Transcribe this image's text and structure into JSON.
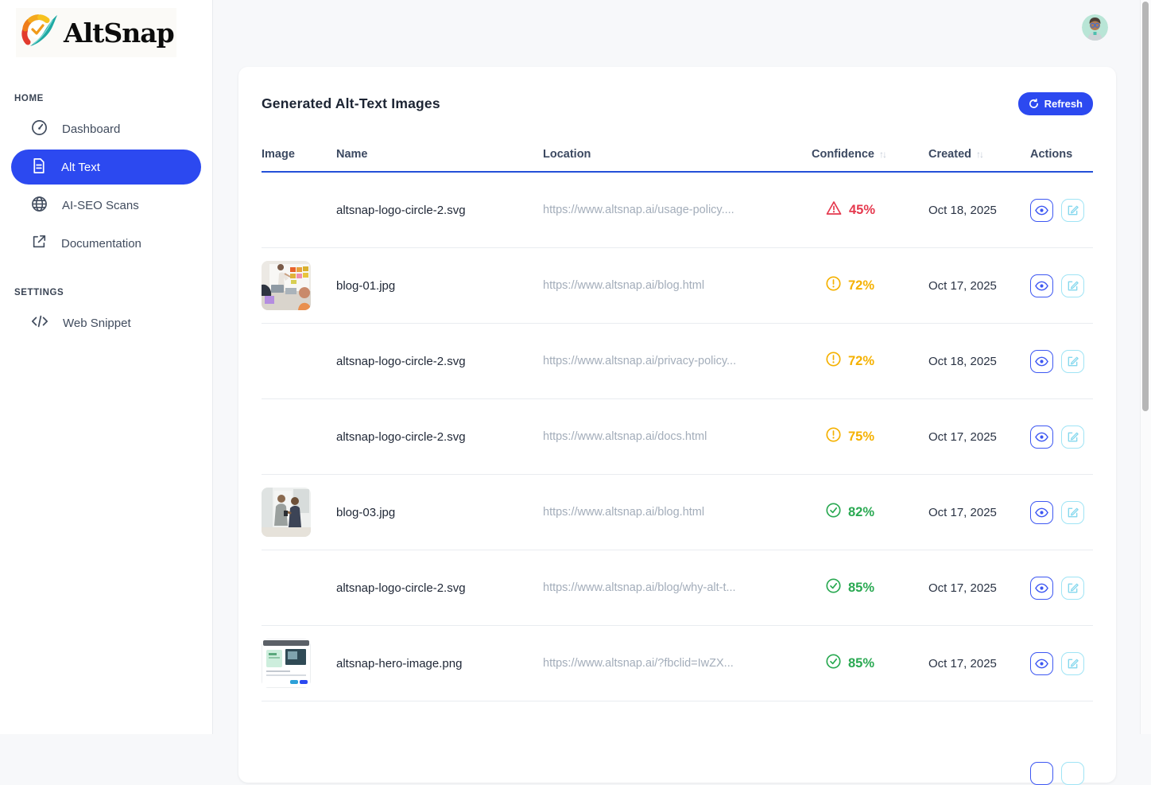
{
  "brand": {
    "name": "AltSnap"
  },
  "sidebar": {
    "sections": [
      {
        "label": "HOME",
        "items": [
          {
            "label": "Dashboard",
            "icon": "gauge-icon",
            "active": false
          },
          {
            "label": "Alt Text",
            "icon": "document-icon",
            "active": true
          },
          {
            "label": "AI-SEO Scans",
            "icon": "globe-icon",
            "active": false
          },
          {
            "label": "Documentation",
            "icon": "external-link-icon",
            "active": false
          }
        ]
      },
      {
        "label": "SETTINGS",
        "items": [
          {
            "label": "Web Snippet",
            "icon": "code-icon",
            "active": false
          }
        ]
      }
    ]
  },
  "header": {
    "avatar": "user-avatar"
  },
  "card": {
    "title": "Generated Alt-Text Images",
    "refresh_label": "Refresh"
  },
  "table": {
    "columns": [
      "Image",
      "Name",
      "Location",
      "Confidence",
      "Created",
      "Actions"
    ],
    "sortable_columns": [
      "Confidence",
      "Created"
    ],
    "sort_glyph": "↑↓",
    "rows": [
      {
        "thumbnail": "none",
        "name": "altsnap-logo-circle-2.svg",
        "location": "https://www.altsnap.ai/usage-policy....",
        "confidence": "45%",
        "level": "danger",
        "created": "Oct 18, 2025"
      },
      {
        "thumbnail": "meeting-photo",
        "name": "blog-01.jpg",
        "location": "https://www.altsnap.ai/blog.html",
        "confidence": "72%",
        "level": "warning",
        "created": "Oct 17, 2025"
      },
      {
        "thumbnail": "none",
        "name": "altsnap-logo-circle-2.svg",
        "location": "https://www.altsnap.ai/privacy-policy...",
        "confidence": "72%",
        "level": "warning",
        "created": "Oct 18, 2025"
      },
      {
        "thumbnail": "none",
        "name": "altsnap-logo-circle-2.svg",
        "location": "https://www.altsnap.ai/docs.html",
        "confidence": "75%",
        "level": "warning",
        "created": "Oct 17, 2025"
      },
      {
        "thumbnail": "businessmen-photo",
        "name": "blog-03.jpg",
        "location": "https://www.altsnap.ai/blog.html",
        "confidence": "82%",
        "level": "success",
        "created": "Oct 17, 2025"
      },
      {
        "thumbnail": "none",
        "name": "altsnap-logo-circle-2.svg",
        "location": "https://www.altsnap.ai/blog/why-alt-t...",
        "confidence": "85%",
        "level": "success",
        "created": "Oct 17, 2025"
      },
      {
        "thumbnail": "webpage-screenshot",
        "name": "altsnap-hero-image.png",
        "location": "https://www.altsnap.ai/?fbclid=IwZX...",
        "confidence": "85%",
        "level": "success",
        "created": "Oct 17, 2025"
      }
    ]
  },
  "colors": {
    "accent_blue": "#2c49f0",
    "header_underline_blue": "#2450d8",
    "danger_red": "#e5394e",
    "warning_amber": "#f5b100",
    "success_green": "#2aa952",
    "edit_button_teal": "#9fe4f5"
  }
}
